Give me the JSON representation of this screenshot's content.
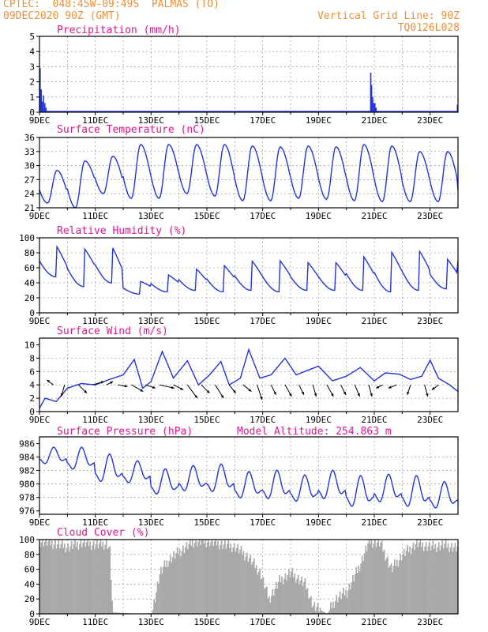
{
  "header": {
    "station_line": "CPTEC:  048:45W-09:49S  PALMAS (TO)",
    "date_line": "09DEC2020 90Z (GMT)",
    "grid_line": "Vertical Grid Line: 90Z",
    "code": "TQ0126L028"
  },
  "colors": {
    "header": "#e8903a",
    "title": "#e0168f",
    "series": "#2233dd",
    "cloud": "#a8a8a8"
  },
  "chart_data": [
    {
      "type": "bar",
      "title": "Precipitation (mm/h)",
      "ylim": [
        0,
        5
      ],
      "yticks": [
        0,
        1,
        2,
        3,
        4,
        5
      ],
      "xticks": [
        "9DEC",
        "11DEC",
        "13DEC",
        "15DEC",
        "17DEC",
        "19DEC",
        "21DEC",
        "23DEC"
      ],
      "x_start": "2020-12-09",
      "x_end": "2020-12-24",
      "values": [
        {
          "day": 0.0,
          "mm": 2.9
        },
        {
          "day": 0.04,
          "mm": 1.5
        },
        {
          "day": 0.08,
          "mm": 0.7
        },
        {
          "day": 0.12,
          "mm": 1.1
        },
        {
          "day": 0.17,
          "mm": 0.6
        },
        {
          "day": 0.21,
          "mm": 0.3
        },
        {
          "day": 11.85,
          "mm": 2.6
        },
        {
          "day": 11.88,
          "mm": 1.8
        },
        {
          "day": 11.92,
          "mm": 1.0
        },
        {
          "day": 11.96,
          "mm": 0.6
        },
        {
          "day": 12.0,
          "mm": 0.6
        },
        {
          "day": 12.04,
          "mm": 0.3
        },
        {
          "day": 14.96,
          "mm": 0.5
        }
      ]
    },
    {
      "type": "line",
      "title": "Surface Temperature (nC)",
      "ylim": [
        21,
        36
      ],
      "yticks": [
        21,
        24,
        27,
        30,
        33,
        36
      ],
      "xticks": [
        "9DEC",
        "11DEC",
        "13DEC",
        "15DEC",
        "17DEC",
        "19DEC",
        "21DEC",
        "23DEC"
      ],
      "x_start": "2020-12-09",
      "x_end": "2020-12-24",
      "daily_min": [
        22.0,
        21.0,
        24.0,
        23.0,
        23.0,
        24.0,
        23.5,
        22.5,
        22.5,
        23.0,
        22.8,
        22.5,
        22.3,
        22.3,
        22.3
      ],
      "daily_max": [
        29.0,
        31.0,
        32.0,
        34.5,
        34.5,
        34.5,
        34.5,
        34.2,
        34.0,
        34.2,
        34.0,
        34.5,
        34.2,
        33.0,
        33.0
      ]
    },
    {
      "type": "line",
      "title": "Relative Humidity (%)",
      "ylim": [
        0,
        100
      ],
      "yticks": [
        0,
        20,
        40,
        60,
        80,
        100
      ],
      "xticks": [
        "9DEC",
        "11DEC",
        "13DEC",
        "15DEC",
        "17DEC",
        "19DEC",
        "21DEC",
        "23DEC"
      ],
      "x_start": "2020-12-09",
      "x_end": "2020-12-24",
      "daily_min": [
        48,
        35,
        40,
        25,
        28,
        30,
        28,
        30,
        28,
        30,
        30,
        30,
        28,
        30,
        32
      ],
      "daily_max": [
        100,
        95,
        100,
        45,
        55,
        65,
        70,
        78,
        78,
        75,
        75,
        85,
        92,
        93,
        80
      ]
    },
    {
      "type": "line",
      "title": "Surface Wind (m/s)",
      "ylim": [
        0,
        11
      ],
      "yticks": [
        0,
        2,
        4,
        6,
        8,
        10
      ],
      "xticks": [
        "9DEC",
        "11DEC",
        "13DEC",
        "15DEC",
        "17DEC",
        "19DEC",
        "21DEC",
        "23DEC"
      ],
      "x_start": "2020-12-09",
      "x_end": "2020-12-24",
      "speed": [
        {
          "day": 0.0,
          "v": 0.5
        },
        {
          "day": 0.2,
          "v": 2.0
        },
        {
          "day": 0.6,
          "v": 1.5
        },
        {
          "day": 1.0,
          "v": 3.5
        },
        {
          "day": 1.5,
          "v": 4.2
        },
        {
          "day": 2.0,
          "v": 4.0
        },
        {
          "day": 2.5,
          "v": 4.8
        },
        {
          "day": 3.0,
          "v": 5.5
        },
        {
          "day": 3.4,
          "v": 7.8
        },
        {
          "day": 3.7,
          "v": 3.5
        },
        {
          "day": 4.0,
          "v": 4.5
        },
        {
          "day": 4.4,
          "v": 9.0
        },
        {
          "day": 4.8,
          "v": 5.0
        },
        {
          "day": 5.3,
          "v": 7.6
        },
        {
          "day": 5.7,
          "v": 4.0
        },
        {
          "day": 6.1,
          "v": 5.5
        },
        {
          "day": 6.5,
          "v": 7.5
        },
        {
          "day": 6.8,
          "v": 4.0
        },
        {
          "day": 7.2,
          "v": 5.0
        },
        {
          "day": 7.5,
          "v": 9.3
        },
        {
          "day": 7.9,
          "v": 5.0
        },
        {
          "day": 8.3,
          "v": 5.5
        },
        {
          "day": 8.8,
          "v": 8.0
        },
        {
          "day": 9.2,
          "v": 5.5
        },
        {
          "day": 9.5,
          "v": 6.0
        },
        {
          "day": 10.0,
          "v": 6.8
        },
        {
          "day": 10.5,
          "v": 4.6
        },
        {
          "day": 11.0,
          "v": 5.3
        },
        {
          "day": 11.5,
          "v": 6.6
        },
        {
          "day": 12.0,
          "v": 4.6
        },
        {
          "day": 12.4,
          "v": 5.8
        },
        {
          "day": 12.9,
          "v": 5.6
        },
        {
          "day": 13.3,
          "v": 4.8
        },
        {
          "day": 13.7,
          "v": 5.3
        },
        {
          "day": 14.0,
          "v": 7.7
        },
        {
          "day": 14.3,
          "v": 5.0
        },
        {
          "day": 14.7,
          "v": 4.0
        },
        {
          "day": 15.0,
          "v": 3.0
        }
      ],
      "arrows": [
        {
          "day": 0.5,
          "u": -2.0,
          "v": 1.5
        },
        {
          "day": 0.9,
          "u": -1.0,
          "v": -3.5
        },
        {
          "day": 1.4,
          "u": 2.5,
          "v": -2.5
        },
        {
          "day": 1.9,
          "u": 3.5,
          "v": 1.0
        },
        {
          "day": 2.4,
          "u": 2.0,
          "v": 1.0
        },
        {
          "day": 2.8,
          "u": 3.0,
          "v": -0.5
        },
        {
          "day": 3.3,
          "u": 3.5,
          "v": -2.0
        },
        {
          "day": 3.8,
          "u": 3.0,
          "v": -1.0
        },
        {
          "day": 4.3,
          "u": 4.5,
          "v": -1.0
        },
        {
          "day": 4.8,
          "u": 3.0,
          "v": -1.5
        },
        {
          "day": 5.3,
          "u": 3.0,
          "v": -4.0
        },
        {
          "day": 5.8,
          "u": 2.5,
          "v": -2.5
        },
        {
          "day": 6.3,
          "u": 2.5,
          "v": -4.0
        },
        {
          "day": 6.8,
          "u": 2.0,
          "v": -2.5
        },
        {
          "day": 7.3,
          "u": 2.5,
          "v": -2.0
        },
        {
          "day": 7.8,
          "u": 1.5,
          "v": -4.5
        },
        {
          "day": 8.3,
          "u": 1.5,
          "v": -3.0
        },
        {
          "day": 8.8,
          "u": 2.0,
          "v": -3.5
        },
        {
          "day": 9.3,
          "u": 1.5,
          "v": -3.0
        },
        {
          "day": 9.8,
          "u": 1.0,
          "v": -3.5
        },
        {
          "day": 10.3,
          "u": 2.0,
          "v": -3.5
        },
        {
          "day": 10.8,
          "u": 1.5,
          "v": -3.0
        },
        {
          "day": 11.3,
          "u": 1.5,
          "v": -3.5
        },
        {
          "day": 11.8,
          "u": 1.0,
          "v": -3.5
        },
        {
          "day": 12.3,
          "u": -2.0,
          "v": -1.0
        },
        {
          "day": 12.8,
          "u": -2.5,
          "v": -1.0
        },
        {
          "day": 13.3,
          "u": -1.0,
          "v": -3.0
        },
        {
          "day": 13.8,
          "u": 1.0,
          "v": -3.5
        },
        {
          "day": 14.3,
          "u": -2.0,
          "v": -1.5
        }
      ]
    },
    {
      "type": "line",
      "title": "Surface Pressure (hPa)",
      "annotation": "Model Altitude: 254.863 m",
      "ylim": [
        975.5,
        987
      ],
      "yticks": [
        976,
        978,
        980,
        982,
        984,
        986
      ],
      "xticks": [
        "9DEC",
        "11DEC",
        "13DEC",
        "15DEC",
        "17DEC",
        "19DEC",
        "21DEC",
        "23DEC"
      ],
      "x_start": "2020-12-09",
      "x_end": "2020-12-24",
      "daily_mean": [
        984.0,
        983.5,
        982.0,
        981.5,
        980.0,
        980.5,
        980.5,
        979.5,
        979.5,
        979.0,
        979.5,
        978.5,
        979.0,
        978.5,
        978.0
      ],
      "daily_amplitude": [
        1.5,
        2.0,
        2.5,
        2.0,
        2.3,
        2.3,
        2.5,
        2.4,
        2.6,
        2.4,
        2.6,
        2.8,
        2.5,
        2.8,
        2.4
      ]
    },
    {
      "type": "area",
      "title": "Cloud Cover (%)",
      "ylim": [
        0,
        100
      ],
      "yticks": [
        0,
        20,
        40,
        60,
        80,
        100
      ],
      "xticks": [
        "9DEC",
        "11DEC",
        "13DEC",
        "15DEC",
        "17DEC",
        "19DEC",
        "21DEC",
        "23DEC"
      ],
      "x_start": "2020-12-09",
      "x_end": "2020-12-24",
      "profile": [
        {
          "day": 0.0,
          "v": 98
        },
        {
          "day": 0.5,
          "v": 95
        },
        {
          "day": 1.0,
          "v": 90
        },
        {
          "day": 1.5,
          "v": 96
        },
        {
          "day": 2.0,
          "v": 93
        },
        {
          "day": 2.4,
          "v": 95
        },
        {
          "day": 2.5,
          "v": 85
        },
        {
          "day": 2.6,
          "v": 2
        },
        {
          "day": 3.5,
          "v": 0
        },
        {
          "day": 4.0,
          "v": 1
        },
        {
          "day": 4.3,
          "v": 55
        },
        {
          "day": 4.6,
          "v": 72
        },
        {
          "day": 5.0,
          "v": 84
        },
        {
          "day": 5.5,
          "v": 97
        },
        {
          "day": 6.0,
          "v": 98
        },
        {
          "day": 6.5,
          "v": 94
        },
        {
          "day": 7.0,
          "v": 90
        },
        {
          "day": 7.5,
          "v": 75
        },
        {
          "day": 7.9,
          "v": 55
        },
        {
          "day": 8.2,
          "v": 20
        },
        {
          "day": 8.6,
          "v": 45
        },
        {
          "day": 9.0,
          "v": 55
        },
        {
          "day": 9.5,
          "v": 40
        },
        {
          "day": 9.8,
          "v": 10
        },
        {
          "day": 10.3,
          "v": 0
        },
        {
          "day": 10.6,
          "v": 20
        },
        {
          "day": 11.0,
          "v": 30
        },
        {
          "day": 11.4,
          "v": 60
        },
        {
          "day": 11.8,
          "v": 98
        },
        {
          "day": 12.2,
          "v": 95
        },
        {
          "day": 12.6,
          "v": 60
        },
        {
          "day": 13.0,
          "v": 80
        },
        {
          "day": 13.5,
          "v": 95
        },
        {
          "day": 14.0,
          "v": 90
        },
        {
          "day": 14.5,
          "v": 93
        },
        {
          "day": 15.0,
          "v": 88
        }
      ]
    }
  ]
}
